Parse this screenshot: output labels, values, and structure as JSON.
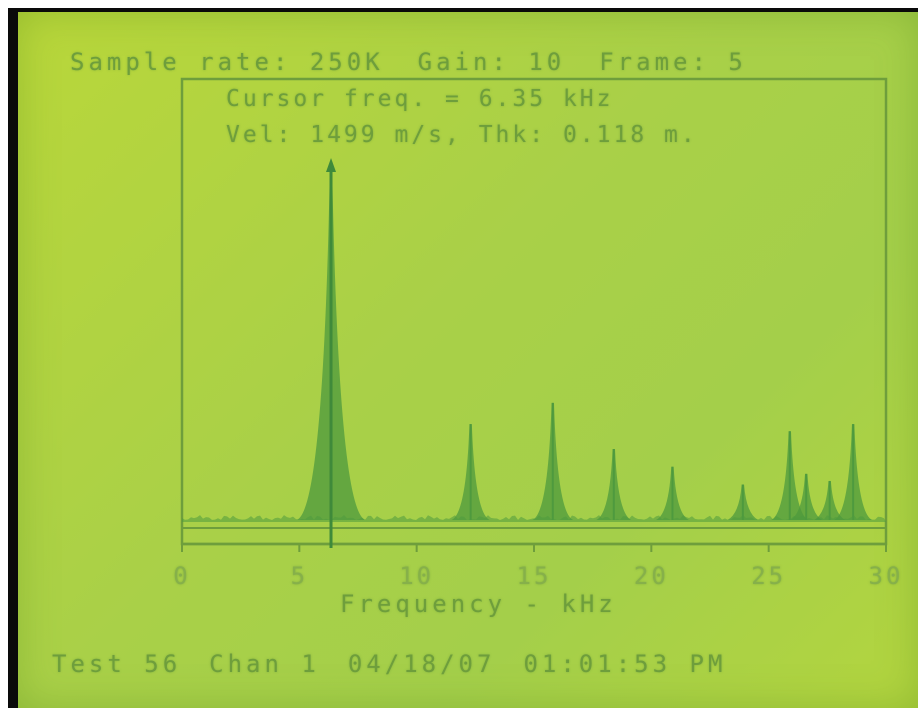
{
  "header": {
    "sample_rate": "Sample rate: 250K",
    "gain": "Gain: 10",
    "frame": "Frame: 5"
  },
  "cursor": {
    "freq": "Cursor freq. = 6.35 kHz",
    "vel": "Vel: 1499 m/s, Thk: 0.118 m."
  },
  "footer": {
    "test": "Test  56",
    "chan": "Chan 1",
    "date": "04/18/07",
    "time": "01:01:53 PM"
  },
  "colors": {
    "lcd_background": "#a9d048",
    "lcd_ink": "#6e9e3c",
    "spectrum": "#4e9a3e"
  },
  "chart_data": {
    "type": "line",
    "xlabel": "Frequency - kHz",
    "ylabel": "",
    "xlim": [
      0,
      30
    ],
    "x_ticks": [
      "0",
      "5",
      "10",
      "15",
      "20",
      "25",
      "30"
    ],
    "cursor_x": 6.35,
    "peaks": [
      {
        "x": 6.35,
        "y": 0.98
      },
      {
        "x": 12.3,
        "y": 0.27
      },
      {
        "x": 15.8,
        "y": 0.33
      },
      {
        "x": 18.4,
        "y": 0.2
      },
      {
        "x": 20.9,
        "y": 0.15
      },
      {
        "x": 23.9,
        "y": 0.1
      },
      {
        "x": 25.9,
        "y": 0.25
      },
      {
        "x": 26.6,
        "y": 0.13
      },
      {
        "x": 27.6,
        "y": 0.11
      },
      {
        "x": 28.6,
        "y": 0.27
      }
    ]
  }
}
